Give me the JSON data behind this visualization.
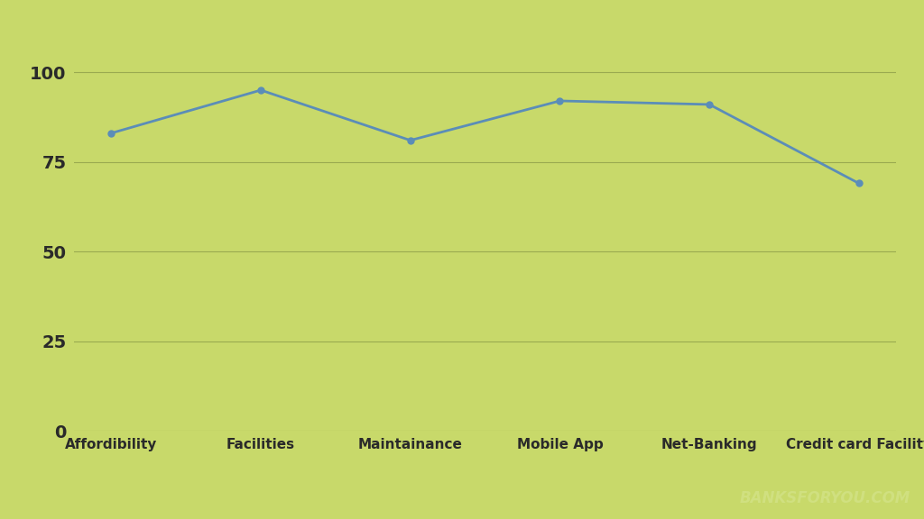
{
  "categories": [
    "Affordibility",
    "Facilities",
    "Maintainance",
    "Mobile App",
    "Net-Banking",
    "Credit card Facility"
  ],
  "values": [
    83,
    95,
    81,
    92,
    91,
    69
  ],
  "line_color": "#5b8db8",
  "background_color": "#c8d96a",
  "grid_color": "#9aaa50",
  "tick_label_color": "#2a2a2a",
  "ylim": [
    0,
    110
  ],
  "yticks": [
    0,
    25,
    50,
    75,
    100
  ],
  "watermark": "BANKSFORYOU.COM",
  "watermark_color": "#d0e080",
  "line_width": 2.0,
  "marker": "o",
  "marker_size": 5,
  "tick_fontsize": 14,
  "xlabel_fontsize": 11
}
